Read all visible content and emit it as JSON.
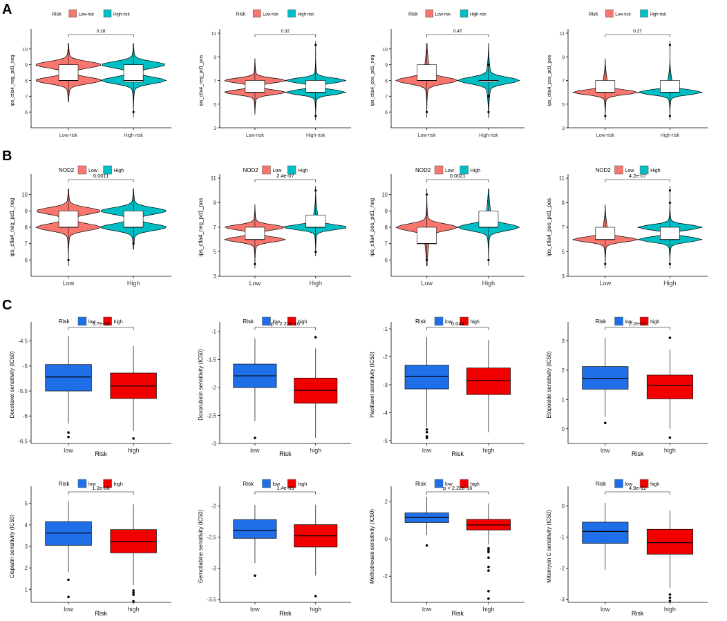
{
  "figure": {
    "panel_labels": [
      "A",
      "B",
      "C"
    ],
    "colors": {
      "low_risk": "#F8766D",
      "high_risk": "#00BFC4",
      "low_box": "#1F6FE8",
      "high_box": "#F20000",
      "outline": "#000000"
    }
  },
  "chart_data": [
    {
      "type": "violin",
      "panel": "A",
      "legend_title": "Risk",
      "legend": [
        "Low-risk",
        "High-risk"
      ],
      "categories": [
        "Low-risk",
        "High-risk"
      ],
      "ylabel": "ips_ctla4_neg_pd1_neg",
      "ylim": [
        5,
        11
      ],
      "yticks": [
        6,
        7,
        8,
        9,
        10
      ],
      "pvalue": "0.28",
      "stats": [
        {
          "q1": 8,
          "median": 8,
          "q3": 9,
          "min": 7,
          "max": 10,
          "modes": [
            8,
            9
          ]
        },
        {
          "q1": 7.9,
          "median": 8,
          "q3": 9,
          "min": 6,
          "max": 10,
          "outliers": [
            6
          ],
          "modes": [
            8,
            9
          ]
        }
      ]
    },
    {
      "type": "violin",
      "panel": "A",
      "legend_title": "Risk",
      "legend": [
        "Low-risk",
        "High-risk"
      ],
      "categories": [
        "Low-risk",
        "High-risk"
      ],
      "ylabel": "ips_ctla4_neg_pd1_pos",
      "ylim": [
        3,
        11
      ],
      "yticks": [
        3,
        5,
        7,
        9,
        11
      ],
      "pvalue": "0.32",
      "stats": [
        {
          "q1": 6,
          "median": 6,
          "q3": 7,
          "min": 4.5,
          "max": 8.5,
          "modes": [
            6,
            7
          ]
        },
        {
          "q1": 6,
          "median": 6,
          "q3": 7,
          "min": 4,
          "max": 10,
          "outliers": [
            4,
            10
          ],
          "modes": [
            6,
            7
          ]
        }
      ]
    },
    {
      "type": "violin",
      "panel": "A",
      "legend_title": "Risk",
      "legend": [
        "Low-risk",
        "High-risk"
      ],
      "categories": [
        "Low-risk",
        "High-risk"
      ],
      "ylabel": "ips_ctla4_pos_pd1_neg",
      "ylim": [
        5,
        11
      ],
      "yticks": [
        6,
        7,
        8,
        9,
        10
      ],
      "pvalue": "0.47",
      "stats": [
        {
          "q1": 8,
          "median": 8,
          "q3": 9,
          "min": 6,
          "max": 10,
          "outliers": [
            6
          ],
          "modes": [
            8
          ]
        },
        {
          "q1": 8,
          "median": 8,
          "q3": 8,
          "min": 6,
          "max": 10,
          "outliers": [
            6,
            7,
            9
          ],
          "modes": [
            8
          ]
        }
      ]
    },
    {
      "type": "violin",
      "panel": "A",
      "legend_title": "Risk",
      "legend": [
        "Low-risk",
        "High-risk"
      ],
      "categories": [
        "Low-risk",
        "High-risk"
      ],
      "ylabel": "ips_ctla4_pos_pd1_pos",
      "ylim": [
        3,
        11
      ],
      "yticks": [
        3,
        5,
        7,
        9,
        11
      ],
      "pvalue": "0.27",
      "stats": [
        {
          "q1": 6,
          "median": 6,
          "q3": 7,
          "min": 4,
          "max": 8.5,
          "outliers": [
            4
          ],
          "modes": [
            6
          ]
        },
        {
          "q1": 6,
          "median": 6,
          "q3": 7,
          "min": 4,
          "max": 10,
          "outliers": [
            4,
            10
          ],
          "modes": [
            6
          ]
        }
      ]
    },
    {
      "type": "violin",
      "panel": "B",
      "legend_title": "NOD2",
      "legend": [
        "Low",
        "High"
      ],
      "categories": [
        "Low",
        "High"
      ],
      "ylabel": "ips_ctla4_neg_pd1_neg",
      "ylim": [
        5,
        11
      ],
      "yticks": [
        6,
        7,
        8,
        9,
        10
      ],
      "pvalue": "0.0011",
      "stats": [
        {
          "q1": 8,
          "median": 8,
          "q3": 9,
          "min": 6,
          "max": 10,
          "outliers": [
            6
          ],
          "modes": [
            8,
            9
          ]
        },
        {
          "q1": 8,
          "median": 8,
          "q3": 9,
          "min": 7,
          "max": 10,
          "outliers": [
            7
          ],
          "modes": [
            8,
            9
          ]
        }
      ]
    },
    {
      "type": "violin",
      "panel": "B",
      "legend_title": "NOD2",
      "legend": [
        "Low",
        "High"
      ],
      "categories": [
        "Low",
        "High"
      ],
      "ylabel": "ips_ctla4_neg_pd1_pos",
      "ylim": [
        3,
        11
      ],
      "yticks": [
        3,
        5,
        7,
        9,
        11
      ],
      "pvalue": "2.4e-07",
      "stats": [
        {
          "q1": 6,
          "median": 6,
          "q3": 7,
          "min": 4,
          "max": 8.5,
          "outliers": [
            4
          ],
          "modes": [
            6,
            7
          ]
        },
        {
          "q1": 7,
          "median": 7,
          "q3": 8,
          "min": 5,
          "max": 10,
          "outliers": [
            5,
            10
          ],
          "modes": [
            7
          ]
        }
      ]
    },
    {
      "type": "violin",
      "panel": "B",
      "legend_title": "NOD2",
      "legend": [
        "Low",
        "High"
      ],
      "categories": [
        "Low",
        "High"
      ],
      "ylabel": "ips_ctla4_pos_pd1_neg",
      "ylim": [
        5,
        11
      ],
      "yticks": [
        6,
        7,
        8,
        9,
        10
      ],
      "pvalue": "0.0021",
      "stats": [
        {
          "q1": 7,
          "median": 7,
          "q3": 8,
          "min": 6,
          "max": 10,
          "outliers": [
            6,
            10
          ],
          "modes": [
            8
          ]
        },
        {
          "q1": 8,
          "median": 8,
          "q3": 9,
          "min": 6,
          "max": 10,
          "outliers": [
            6
          ],
          "modes": [
            8
          ]
        }
      ]
    },
    {
      "type": "violin",
      "panel": "B",
      "legend_title": "NOD2",
      "legend": [
        "Low",
        "High"
      ],
      "categories": [
        "Low",
        "High"
      ],
      "ylabel": "ips_ctla4_pos_pd1_pos",
      "ylim": [
        3,
        11
      ],
      "yticks": [
        3,
        5,
        7,
        9,
        11
      ],
      "pvalue": "4.2e-07",
      "stats": [
        {
          "q1": 6,
          "median": 6,
          "q3": 7,
          "min": 4,
          "max": 8.5,
          "outliers": [
            4
          ],
          "modes": [
            6
          ]
        },
        {
          "q1": 6,
          "median": 6,
          "q3": 7,
          "min": 4,
          "max": 10,
          "outliers": [
            4,
            9,
            10
          ],
          "modes": [
            6,
            7
          ]
        }
      ]
    },
    {
      "type": "box",
      "panel": "C",
      "legend_title": "Risk",
      "legend": [
        "low",
        "high"
      ],
      "categories": [
        "low",
        "high"
      ],
      "xlabel": "Risk",
      "ylabel": "Docetaxel sensitivity (IC50)",
      "ylim": [
        -6.55,
        -4.2
      ],
      "yticks": [
        -6.5,
        -6,
        -5.5,
        -5,
        -4.5
      ],
      "pvalue": "5.7e-06",
      "stats": [
        {
          "q1": -5.5,
          "median": -5.22,
          "q3": -4.97,
          "min": -6.15,
          "max": -4.4,
          "outliers": [
            -6.33,
            -6.42
          ]
        },
        {
          "q1": -5.65,
          "median": -5.4,
          "q3": -5.14,
          "min": -6.3,
          "max": -4.6,
          "outliers": [
            -6.45
          ]
        }
      ]
    },
    {
      "type": "box",
      "panel": "C",
      "legend_title": "Risk",
      "legend": [
        "low",
        "high"
      ],
      "categories": [
        "low",
        "high"
      ],
      "xlabel": "Risk",
      "ylabel": "Doxorubicin sensitivity (IC50)",
      "ylim": [
        -3,
        -0.9
      ],
      "yticks": [
        -3,
        -2.5,
        -2,
        -1.5,
        -1
      ],
      "pvalue": "p < 2.22e-16",
      "stats": [
        {
          "q1": -2,
          "median": -1.79,
          "q3": -1.58,
          "min": -2.6,
          "max": -1.12,
          "outliers": [
            -2.9
          ]
        },
        {
          "q1": -2.28,
          "median": -2.05,
          "q3": -1.83,
          "min": -2.9,
          "max": -1.3,
          "outliers": [
            -1.1
          ]
        }
      ]
    },
    {
      "type": "box",
      "panel": "C",
      "legend_title": "Risk",
      "legend": [
        "low",
        "high"
      ],
      "categories": [
        "low",
        "high"
      ],
      "xlabel": "Risk",
      "ylabel": "Paclitaxel sensitivity (IC50)",
      "ylim": [
        -5.1,
        -0.9
      ],
      "yticks": [
        -5,
        -4,
        -3,
        -2,
        -1
      ],
      "pvalue": "0.044",
      "stats": [
        {
          "q1": -3.15,
          "median": -2.7,
          "q3": -2.3,
          "min": -4.5,
          "max": -1.3,
          "outliers": [
            -4.6,
            -4.7,
            -4.85,
            -4.9
          ]
        },
        {
          "q1": -3.35,
          "median": -2.85,
          "q3": -2.4,
          "min": -4.7,
          "max": -1.4,
          "outliers": []
        }
      ]
    },
    {
      "type": "box",
      "panel": "C",
      "legend_title": "Risk",
      "legend": [
        "low",
        "high"
      ],
      "categories": [
        "low",
        "high"
      ],
      "xlabel": "Risk",
      "ylabel": "Etoposide sensitivity (IC50)",
      "ylim": [
        -0.5,
        3.5
      ],
      "yticks": [
        0,
        1,
        2,
        3
      ],
      "pvalue": "2.2e-07",
      "stats": [
        {
          "q1": 1.35,
          "median": 1.72,
          "q3": 2.12,
          "min": 0.4,
          "max": 3.1,
          "outliers": [
            0.2
          ]
        },
        {
          "q1": 1.02,
          "median": 1.48,
          "q3": 1.83,
          "min": 0,
          "max": 2.7,
          "outliers": [
            3.1,
            -0.3
          ]
        }
      ]
    },
    {
      "type": "box",
      "panel": "C",
      "legend_title": "Risk",
      "legend": [
        "low",
        "high"
      ],
      "categories": [
        "low",
        "high"
      ],
      "xlabel": "Risk",
      "ylabel": "Cisplatin sensitivity (IC50)",
      "ylim": [
        0.4,
        5.6
      ],
      "yticks": [
        1,
        2,
        3,
        4,
        5
      ],
      "pvalue": "1.2e-06",
      "stats": [
        {
          "q1": 3.05,
          "median": 3.62,
          "q3": 4.15,
          "min": 1.8,
          "max": 5.1,
          "outliers": [
            1.45,
            0.65
          ]
        },
        {
          "q1": 2.7,
          "median": 3.22,
          "q3": 3.78,
          "min": 1.2,
          "max": 4.95,
          "outliers": [
            0.95,
            0.85,
            0.75,
            0.45
          ]
        }
      ]
    },
    {
      "type": "box",
      "panel": "C",
      "legend_title": "Risk",
      "legend": [
        "low",
        "high"
      ],
      "categories": [
        "low",
        "high"
      ],
      "xlabel": "Risk",
      "ylabel": "Gemcitabine sensitivity (IC50)",
      "ylim": [
        -3.55,
        -1.75
      ],
      "yticks": [
        -3.5,
        -3,
        -2.5,
        -2
      ],
      "pvalue": "1.4e-05",
      "stats": [
        {
          "q1": -2.52,
          "median": -2.39,
          "q3": -2.22,
          "min": -2.92,
          "max": -1.98,
          "outliers": [
            -3.12
          ]
        },
        {
          "q1": -2.66,
          "median": -2.48,
          "q3": -2.3,
          "min": -3.12,
          "max": -1.98,
          "outliers": [
            -3.45
          ]
        }
      ]
    },
    {
      "type": "box",
      "panel": "C",
      "legend_title": "Risk",
      "legend": [
        "low",
        "high"
      ],
      "categories": [
        "low",
        "high"
      ],
      "xlabel": "Risk",
      "ylabel": "Methotrexate sensitivity (IC50)",
      "ylim": [
        -3.4,
        2.6
      ],
      "yticks": [
        -2,
        0,
        2
      ],
      "pvalue": "p < 2.22e-16",
      "stats": [
        {
          "q1": 0.88,
          "median": 1.15,
          "q3": 1.4,
          "min": 0.2,
          "max": 2.25,
          "outliers": [
            -0.35
          ]
        },
        {
          "q1": 0.48,
          "median": 0.75,
          "q3": 1.05,
          "min": -0.3,
          "max": 1.9,
          "outliers": [
            -0.5,
            -0.6,
            -0.7,
            -1.0,
            -1.5,
            -1.7,
            -2.8,
            -3.2
          ]
        }
      ]
    },
    {
      "type": "box",
      "panel": "C",
      "legend_title": "Risk",
      "legend": [
        "low",
        "high"
      ],
      "categories": [
        "low",
        "high"
      ],
      "xlabel": "Risk",
      "ylabel": "Mitomycin C sensitivity (IC50)",
      "ylim": [
        -3.1,
        0.5
      ],
      "yticks": [
        -3,
        -2,
        -1,
        0
      ],
      "pvalue": "4.9e-12",
      "stats": [
        {
          "q1": -1.2,
          "median": -0.82,
          "q3": -0.52,
          "min": -2.05,
          "max": 0.1,
          "outliers": []
        },
        {
          "q1": -1.55,
          "median": -1.18,
          "q3": -0.75,
          "min": -2.65,
          "max": -0.15,
          "outliers": [
            -2.85,
            -2.95,
            -3.05
          ]
        }
      ]
    }
  ]
}
